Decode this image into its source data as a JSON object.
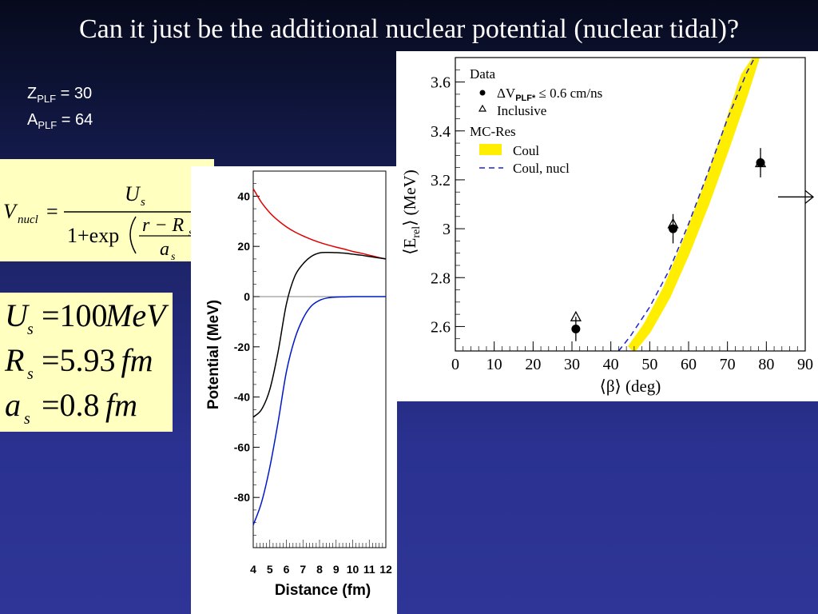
{
  "slide": {
    "title": "Can it just be the additional nuclear potential (nuclear tidal)?",
    "plf": {
      "z_label": "Z",
      "z_sub": "PLF",
      "z_value": "= 30",
      "a_label": "A",
      "a_sub": "PLF",
      "a_value": "= 64"
    },
    "formula": {
      "lhs": "V",
      "lhs_sub": "nucl",
      "eq": "=",
      "num": "U",
      "num_sub": "s",
      "den_one": "1+exp",
      "inner_num": "r − R",
      "inner_num_sub": "s",
      "inner_den": "a",
      "inner_den_sub": "s"
    },
    "params": [
      {
        "sym": "U",
        "sub": "s",
        "value": "=100",
        "unit": "MeV"
      },
      {
        "sym": "R",
        "sub": "s",
        "value": "=5.93",
        "unit": "fm"
      },
      {
        "sym": "a",
        "sub": "s",
        "value": "=0.8",
        "unit": "fm"
      }
    ]
  },
  "chart_data": [
    {
      "type": "line",
      "title": "",
      "xlabel": "Distance (fm)",
      "ylabel": "Potential (MeV)",
      "xlim": [
        4,
        12
      ],
      "ylim": [
        -100,
        50
      ],
      "xticks": [
        4,
        5,
        6,
        7,
        8,
        9,
        10,
        11,
        12
      ],
      "yticks": [
        40,
        20,
        0,
        -20,
        -40,
        -60,
        -80
      ],
      "x": [
        4,
        4.5,
        5,
        5.5,
        6,
        6.5,
        7,
        7.5,
        8,
        8.5,
        9,
        9.5,
        10,
        10.5,
        11,
        11.5,
        12
      ],
      "series": [
        {
          "color": "#e00000",
          "values": [
            43,
            37.5,
            33.4,
            30.3,
            27.8,
            25.8,
            24.2,
            22.8,
            21.6,
            20.6,
            19.7,
            18.9,
            18,
            17.3,
            16.5,
            15.7,
            15
          ]
        },
        {
          "color": "#000000",
          "values": [
            -48,
            -45,
            -37,
            -22,
            -3,
            8,
            13,
            16,
            17.4,
            17.6,
            17.5,
            17.3,
            16.9,
            16.5,
            16,
            15.5,
            15
          ]
        },
        {
          "color": "#0018c8",
          "values": [
            -91,
            -82,
            -68,
            -50,
            -30,
            -17,
            -8.8,
            -3.8,
            -1.5,
            -0.5,
            -0.2,
            -0.1,
            0,
            0,
            0,
            0,
            0
          ]
        }
      ],
      "zero_line": true,
      "minor_ticks_x": 0.2
    },
    {
      "type": "scatter",
      "title": "",
      "xlabel": "⟨β⟩ (deg)",
      "ylabel": "⟨E",
      "ylabel_sub": "rel",
      "ylabel_tail": "⟩ (MeV)",
      "xlim": [
        0,
        90
      ],
      "ylim": [
        2.5,
        3.7
      ],
      "xticks": [
        0,
        10,
        20,
        30,
        40,
        50,
        60,
        70,
        80,
        90
      ],
      "yticks": [
        2.6,
        2.8,
        3,
        3.2,
        3.4,
        3.6
      ],
      "ytick_labels": [
        "2.6",
        "2.8",
        "3",
        "3.2",
        "3.4",
        "3.6"
      ],
      "legend": {
        "position": "top-left",
        "data_header": "Data",
        "dv_prefix": "ΔV",
        "dv_sub": "PLF*",
        "dv_suffix": "≤ 0.6 cm/ns",
        "inclusive": "Inclusive",
        "mc_header": "MC-Res",
        "coul": "Coul",
        "coul_nucl": "Coul, nucl"
      },
      "points_dv": [
        {
          "x": 31,
          "y": 2.59,
          "err": 0.05
        },
        {
          "x": 56,
          "y": 3.0,
          "err": 0.06
        },
        {
          "x": 78.5,
          "y": 3.27,
          "err": 0.06
        }
      ],
      "points_inclusive": [
        {
          "x": 31,
          "y": 2.64
        },
        {
          "x": 56,
          "y": 3.02
        },
        {
          "x": 78.5,
          "y": 3.27
        }
      ],
      "band_coul": {
        "color": "#ffee00",
        "x": [
          46,
          50,
          55,
          60,
          65,
          70,
          75,
          78
        ],
        "lower": [
          2.5,
          2.58,
          2.72,
          2.9,
          3.1,
          3.32,
          3.55,
          3.7
        ],
        "upper": [
          2.52,
          2.61,
          2.76,
          2.95,
          3.16,
          3.39,
          3.63,
          3.7
        ]
      },
      "line_coul_nucl": {
        "color": "#2020d0",
        "x": [
          42,
          45,
          50,
          55,
          60,
          65,
          70,
          75,
          77
        ],
        "y": [
          2.5,
          2.56,
          2.68,
          2.83,
          3.02,
          3.23,
          3.45,
          3.64,
          3.7
        ]
      },
      "arrow_right_y": 3.13
    }
  ]
}
